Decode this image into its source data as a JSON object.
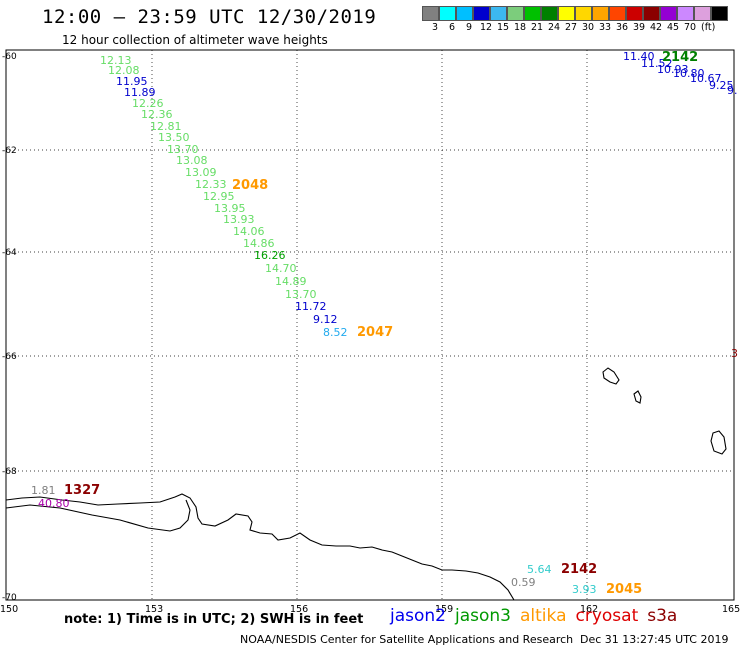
{
  "title": "12:00 – 23:59 UTC 12/30/2019",
  "subtitle": "12 hour collection of altimeter wave heights",
  "colorbar": {
    "colors": [
      "#808080",
      "#00ffff",
      "#00bfff",
      "#0000cd",
      "#3cb8f0",
      "#7ccd7c",
      "#00c000",
      "#008000",
      "#ffff00",
      "#ffd700",
      "#ffa500",
      "#ff4500",
      "#cc0000",
      "#8b0000",
      "#9400d3",
      "#cc88ff",
      "#dda0dd",
      "#000000"
    ],
    "ticks": [
      "3",
      "6",
      "9",
      "12",
      "15",
      "18",
      "21",
      "24",
      "27",
      "30",
      "33",
      "36",
      "39",
      "42",
      "45",
      "70",
      "(ft)"
    ],
    "unit": "(ft)"
  },
  "axes": {
    "lat_labels": [
      "-60",
      "-62",
      "-64",
      "-66",
      "-68",
      "-70"
    ],
    "lon_labels": [
      "150",
      "153",
      "156",
      "159",
      "162",
      "165"
    ]
  },
  "tracks": {
    "track_a": {
      "heights": [
        "12.13",
        "12.08",
        "11.95",
        "11.89",
        "12.26",
        "12.36",
        "12.81",
        "13.50",
        "13.70",
        "13.08",
        "13.09",
        "12.33",
        "12.95",
        "13.95",
        "13.93",
        "14.06",
        "14.86",
        "16.26",
        "14.70",
        "14.89",
        "13.70",
        "11.72",
        "9.12",
        "8.52"
      ],
      "colors": [
        "#66dd66",
        "#66dd66",
        "#0000cd",
        "#0000cd",
        "#66dd66",
        "#66dd66",
        "#66dd66",
        "#66dd66",
        "#66dd66",
        "#66dd66",
        "#66dd66",
        "#66dd66",
        "#66dd66",
        "#66dd66",
        "#66dd66",
        "#66dd66",
        "#66dd66",
        "#00a000",
        "#66dd66",
        "#66dd66",
        "#66dd66",
        "#0000cd",
        "#0000cd",
        "#22aaee"
      ],
      "pass_labels": [
        {
          "text": "2048",
          "color": "#ff9900"
        },
        {
          "text": "2047",
          "color": "#ff9900"
        }
      ]
    },
    "track_b": {
      "heights": [
        "11.40",
        "11.52",
        "10.93",
        "10.80",
        "10.67",
        "9.25",
        "9."
      ],
      "colors": [
        "#0000cd",
        "#0000cd",
        "#0000cd",
        "#0000cd",
        "#0000cd",
        "#0000cd",
        "#0000cd"
      ],
      "pass_label": {
        "text": "2142",
        "color": "#008000"
      }
    },
    "track_c": {
      "heights": [
        "1.81",
        "40.80"
      ],
      "colors": [
        "#808080",
        "#aa00aa"
      ],
      "pass_label": {
        "text": "1327",
        "color": "#8b0000"
      }
    },
    "track_d": {
      "heights": [
        "5.64",
        "0.59",
        "3.93"
      ],
      "colors": [
        "#33cccc",
        "#808080",
        "#33cccc"
      ],
      "pass_labels": [
        {
          "text": "2142",
          "color": "#8b0000"
        },
        {
          "text": "2045",
          "color": "#ff9900"
        }
      ]
    },
    "edge_label": {
      "text": "3",
      "color": "#8b0000"
    }
  },
  "note": "note: 1) Time is in UTC; 2) SWH is in feet",
  "legend": [
    {
      "name": "jason2",
      "color": "#0000ee"
    },
    {
      "name": "jason3",
      "color": "#009900"
    },
    {
      "name": "altika",
      "color": "#ff9900"
    },
    {
      "name": "cryosat",
      "color": "#dd0000"
    },
    {
      "name": "s3a",
      "color": "#8b0000"
    }
  ],
  "credit": "NOAA/NESDIS Center for Satellite Applications and Research",
  "timestamp": "Dec 31 13:27:45 UTC 2019"
}
